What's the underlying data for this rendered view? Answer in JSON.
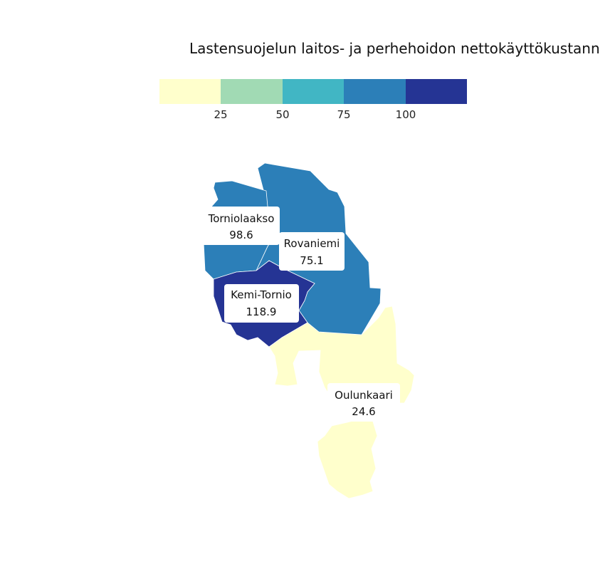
{
  "title": "Lastensuojelun laitos- ja perhehoidon nettokäyttökustann",
  "legend": {
    "colors": [
      "#ffffcc",
      "#a1dab4",
      "#41b6c4",
      "#2c7fb8",
      "#253494"
    ],
    "ticks": [
      "25",
      "50",
      "75",
      "100"
    ]
  },
  "regions": [
    {
      "name": "Torniolaakso",
      "value": "98.6",
      "color": "#2c7fb8"
    },
    {
      "name": "Rovaniemi",
      "value": "75.1",
      "color": "#2c7fb8"
    },
    {
      "name": "Kemi-Tornio",
      "value": "118.9",
      "color": "#253494"
    },
    {
      "name": "Oulunkaari",
      "value": "24.6",
      "color": "#ffffcc"
    }
  ]
}
